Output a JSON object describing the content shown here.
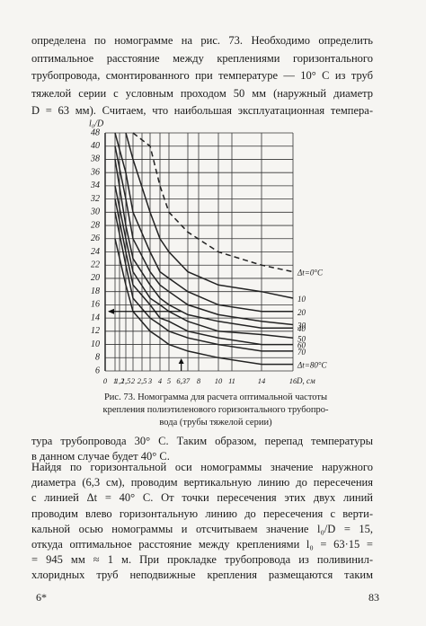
{
  "paragraphs": [
    {
      "lines": [
        "определена по номограмме на рис. 73. Необходимо определить",
        "оптимальное расстояние между креплениями горизонтального",
        "трубопровода, смонтированного при температуре — 10° С из труб",
        "тяжелой серии с условным проходом 50 мм (наружный диаметр",
        "D = 63 мм). Считаем, что наибольшая эксплуатационная темпера-"
      ]
    },
    {
      "lines": [
        "тура трубопровода 30° С. Таким образом, перепад температуры",
        "в данном случае будет 40° С."
      ]
    },
    {
      "lines": [
        "Найдя по горизонтальной оси номограммы значение наружного",
        "диаметра (6,3 см), проводим вертикальную линию до пересечения",
        "с линией Δt = 40° С. От точки пересечения этих двух линий",
        "проводим влево горизонтальную линию до пересечения с верти-",
        "кальной осью номограммы и отсчитываем значение l₀/D = 15,",
        "откуда оптимальное расстояние между креплениями l₀ = 63·15 =",
        "= 945 мм ≈ 1 м. При прокладке трубопровода из поливинил-",
        "хлоридных труб неподвижные крепления размещаются таким"
      ]
    }
  ],
  "figure": {
    "caption": [
      "Рис. 73. Номограмма для расчета оптимальной частоты",
      "крепления полиэтиленового горизонтального трубопро-",
      "вода (трубы тяжелой серии)"
    ],
    "chart": {
      "type": "line",
      "xlabel": "D, см",
      "ylabel": "l₀/D",
      "grid": true,
      "x": [
        1,
        1.5,
        2,
        3,
        4,
        5,
        7,
        10,
        14,
        16
      ],
      "xlim": [
        0,
        16
      ],
      "xticks": [
        0,
        1,
        {
          "value": 1.2,
          "label": "1,2"
        },
        {
          "value": 1.5,
          "label": "1,5"
        },
        2,
        {
          "value": 2.5,
          "label": "2,5"
        },
        3,
        4,
        5,
        7,
        8,
        10,
        11,
        14,
        16
      ],
      "ylim": [
        6,
        48
      ],
      "yticks": [
        48,
        40,
        38,
        36,
        34,
        32,
        30,
        28,
        26,
        24,
        22,
        20,
        18,
        16,
        14,
        12,
        10,
        8,
        6
      ],
      "color": "#222",
      "series": [
        {
          "name": "Δt=0°C",
          "dashed": true,
          "values": [
            null,
            null,
            48,
            40,
            34,
            30,
            27,
            24,
            22,
            21
          ]
        },
        {
          "name": "10",
          "values": [
            null,
            48,
            38,
            30,
            26,
            24,
            21,
            19,
            18,
            17
          ]
        },
        {
          "name": "20",
          "values": [
            48,
            36,
            30,
            24,
            21,
            20,
            18,
            16,
            15,
            15
          ]
        },
        {
          "name": "30",
          "values": [
            40,
            32,
            26,
            21,
            19,
            18,
            16,
            14.5,
            13.5,
            13
          ]
        },
        {
          "name": "40",
          "values": [
            38,
            28,
            23,
            19,
            17,
            16,
            14.5,
            13.5,
            12.5,
            12.5
          ]
        },
        {
          "name": "50",
          "values": [
            34,
            26,
            21,
            17,
            16,
            15,
            13.5,
            12,
            11.5,
            11
          ]
        },
        {
          "name": "60",
          "values": [
            32,
            24,
            19,
            16,
            14,
            13.5,
            12,
            11,
            10,
            10
          ]
        },
        {
          "name": "70",
          "values": [
            30,
            22,
            17,
            14,
            13,
            12,
            11,
            10,
            9,
            9
          ]
        },
        {
          "name": "Δt=80°C",
          "values": [
            26,
            19,
            15,
            12,
            11,
            10,
            9,
            8,
            7,
            7
          ]
        }
      ],
      "annotation": {
        "x": {
          "value": 6.3,
          "label": "6,3"
        },
        "y": 15
      }
    }
  },
  "footer": {
    "left": "6*",
    "right": "83"
  }
}
